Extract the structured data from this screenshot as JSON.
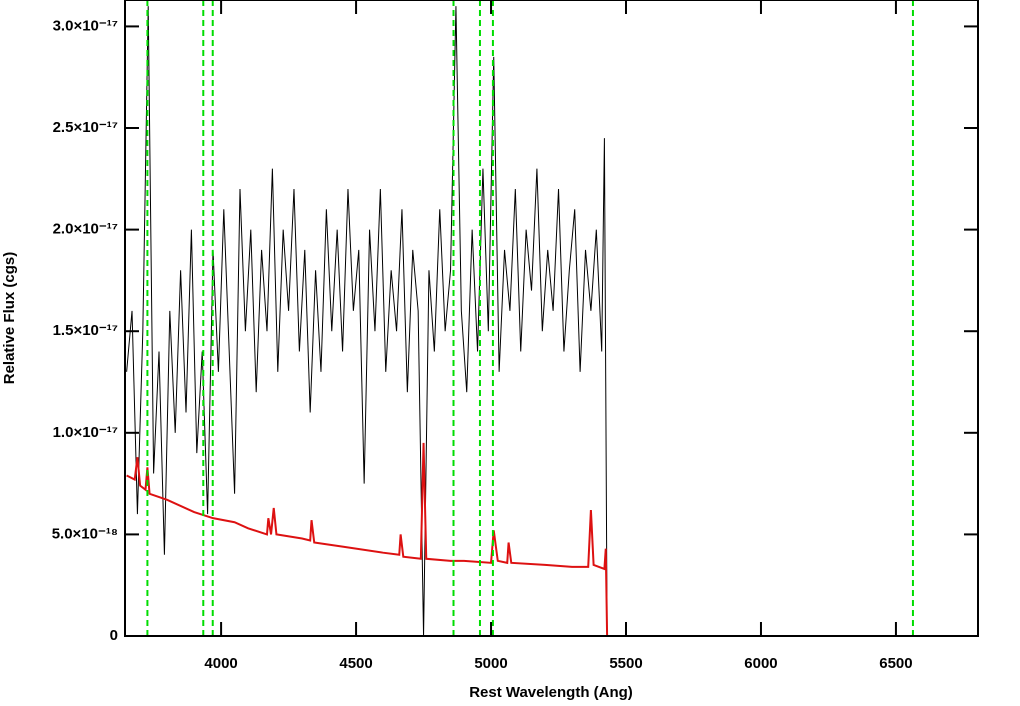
{
  "chart_data": {
    "type": "line",
    "xlabel": "Rest Wavelength (Ang)",
    "ylabel": "Relative Flux (cgs)",
    "xlim": [
      3644,
      6804
    ],
    "ylim": [
      0,
      3.13e-17
    ],
    "xticks": [
      4000,
      4500,
      5000,
      5500,
      6000,
      6500
    ],
    "yticks": [
      0,
      {
        "value": 5e-18,
        "label": "5.0×10⁻¹⁸"
      },
      {
        "value": 1e-17,
        "label": "1.0×10⁻¹⁷"
      },
      {
        "value": 1.5e-17,
        "label": "1.5×10⁻¹⁷"
      },
      {
        "value": 2e-17,
        "label": "2.0×10⁻¹⁷"
      },
      {
        "value": 2.5e-17,
        "label": "2.5×10⁻¹⁷"
      },
      {
        "value": 3e-17,
        "label": "3.0×10⁻¹⁷"
      }
    ],
    "vlines": [
      3727,
      3934,
      3969,
      4861,
      4959,
      5007,
      6563
    ],
    "vline_color": "#00dd00",
    "series": [
      {
        "color": "#000000",
        "x": [
          3650,
          3670,
          3690,
          3710,
          3730,
          3750,
          3770,
          3790,
          3810,
          3830,
          3850,
          3870,
          3890,
          3910,
          3930,
          3950,
          3970,
          3990,
          4010,
          4030,
          4050,
          4070,
          4090,
          4110,
          4130,
          4150,
          4170,
          4190,
          4210,
          4230,
          4250,
          4270,
          4290,
          4310,
          4330,
          4350,
          4370,
          4390,
          4410,
          4430,
          4450,
          4470,
          4490,
          4510,
          4530,
          4550,
          4570,
          4590,
          4610,
          4630,
          4650,
          4670,
          4690,
          4710,
          4730,
          4750,
          4770,
          4790,
          4810,
          4830,
          4850,
          4870,
          4890,
          4910,
          4930,
          4950,
          4970,
          4990,
          5010,
          5030,
          5050,
          5070,
          5090,
          5110,
          5130,
          5150,
          5170,
          5190,
          5210,
          5230,
          5250,
          5270,
          5290,
          5310,
          5330,
          5350,
          5370,
          5390,
          5410,
          5420,
          5430,
          6800
        ],
        "values": [
          1.3e-17,
          1.6e-17,
          6e-18,
          1.5e-17,
          3.1e-17,
          8e-18,
          1.4e-17,
          4e-18,
          1.6e-17,
          1e-17,
          1.8e-17,
          1.1e-17,
          2e-17,
          9e-18,
          1.4e-17,
          6e-18,
          1.9e-17,
          1.3e-17,
          2.1e-17,
          1.4e-17,
          7e-18,
          2.2e-17,
          1.5e-17,
          2e-17,
          1.2e-17,
          1.9e-17,
          1.5e-17,
          2.3e-17,
          1.3e-17,
          2e-17,
          1.6e-17,
          2.2e-17,
          1.4e-17,
          1.9e-17,
          1.1e-17,
          1.8e-17,
          1.3e-17,
          2.1e-17,
          1.5e-17,
          2e-17,
          1.4e-17,
          2.2e-17,
          1.6e-17,
          1.9e-17,
          7.5e-18,
          2e-17,
          1.5e-17,
          2.2e-17,
          1.3e-17,
          1.8e-17,
          1.5e-17,
          2.1e-17,
          1.2e-17,
          1.9e-17,
          1.6e-17,
          0,
          1.8e-17,
          1.4e-17,
          2.1e-17,
          1.5e-17,
          1.8e-17,
          3.1e-17,
          1.6e-17,
          1.2e-17,
          2e-17,
          1.4e-17,
          2.3e-17,
          1.5e-17,
          2.85e-17,
          1.3e-17,
          1.9e-17,
          1.6e-17,
          2.2e-17,
          1.4e-17,
          2e-17,
          1.7e-17,
          2.3e-17,
          1.5e-17,
          1.9e-17,
          1.6e-17,
          2.2e-17,
          1.4e-17,
          1.8e-17,
          2.1e-17,
          1.3e-17,
          1.9e-17,
          1.6e-17,
          2e-17,
          1.4e-17,
          2.45e-17,
          0,
          0
        ]
      },
      {
        "color": "#dd1111",
        "x": [
          3650,
          3680,
          3690,
          3700,
          3720,
          3727,
          3735,
          3800,
          3900,
          3970,
          4050,
          4100,
          4170,
          4175,
          4185,
          4195,
          4205,
          4300,
          4330,
          4335,
          4345,
          4450,
          4600,
          4660,
          4665,
          4675,
          4740,
          4750,
          4760,
          4850,
          4900,
          5000,
          5010,
          5025,
          5060,
          5065,
          5075,
          5200,
          5300,
          5360,
          5370,
          5380,
          5420,
          5425,
          5430,
          6800
        ],
        "values": [
          7.9e-18,
          7.7e-18,
          8.8e-18,
          7.4e-18,
          7.2e-18,
          8.3e-18,
          7e-18,
          6.7e-18,
          6.1e-18,
          5.8e-18,
          5.6e-18,
          5.3e-18,
          5e-18,
          5.8e-18,
          5e-18,
          6.3e-18,
          5e-18,
          4.8e-18,
          4.7e-18,
          5.7e-18,
          4.6e-18,
          4.4e-18,
          4.1e-18,
          4e-18,
          5e-18,
          3.9e-18,
          3.8e-18,
          9.5e-18,
          3.8e-18,
          3.7e-18,
          3.7e-18,
          3.6e-18,
          5.2e-18,
          3.7e-18,
          3.6e-18,
          4.6e-18,
          3.6e-18,
          3.5e-18,
          3.4e-18,
          3.4e-18,
          6.2e-18,
          3.5e-18,
          3.3e-18,
          4.3e-18,
          0,
          0
        ]
      }
    ]
  }
}
